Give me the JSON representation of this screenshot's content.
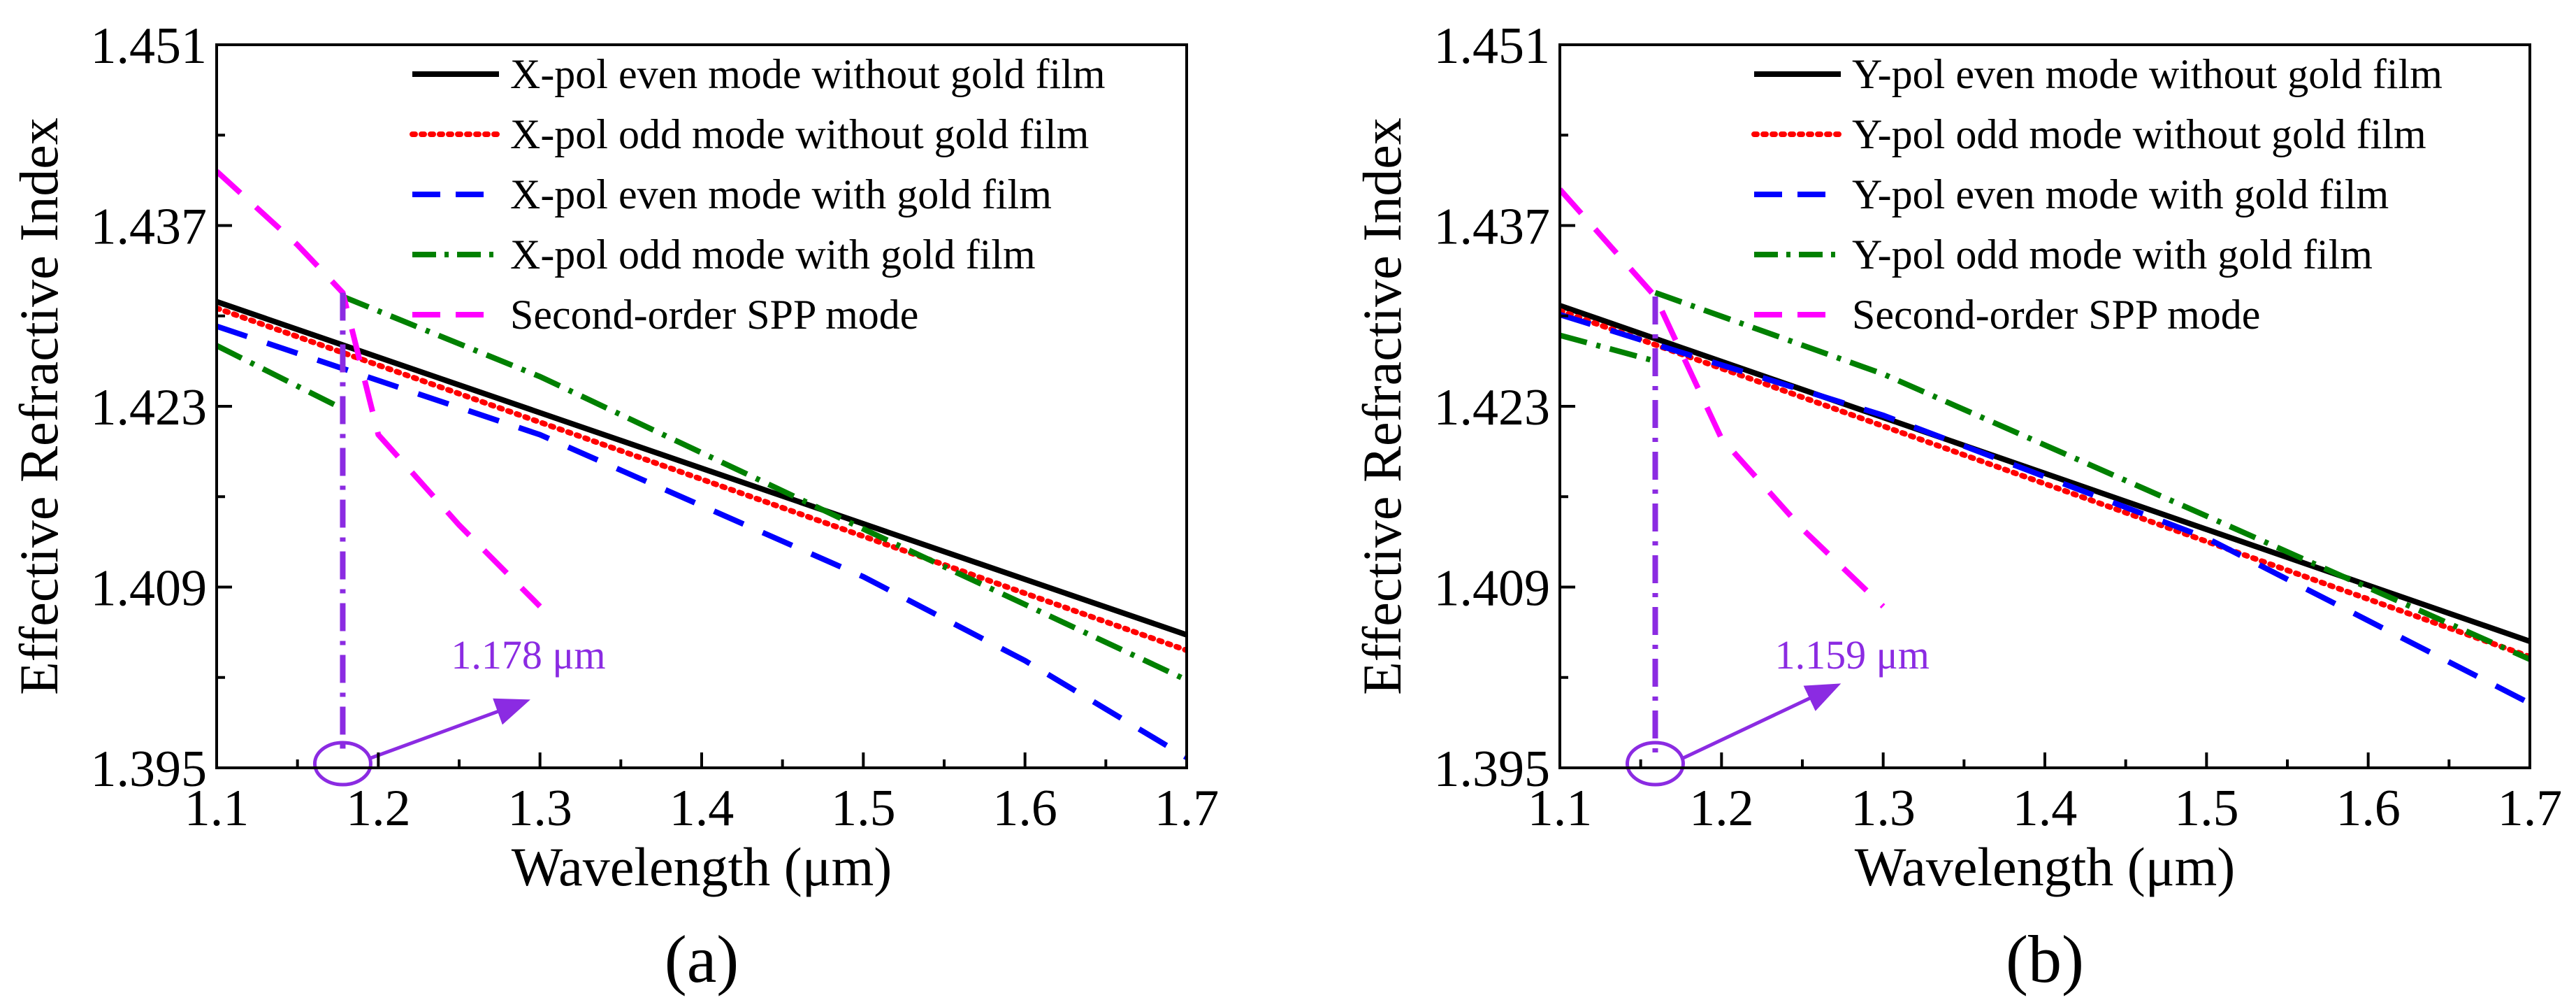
{
  "chart_data": [
    {
      "type": "line",
      "panel_label": "(a)",
      "xlabel": "Wavelength (μm)",
      "ylabel": "Effective Refractive Index",
      "xlim": [
        1.1,
        1.7
      ],
      "ylim": [
        1.395,
        1.451
      ],
      "xticks": [
        1.1,
        1.2,
        1.3,
        1.4,
        1.5,
        1.6,
        1.7
      ],
      "xtick_labels": [
        "1.1",
        "1.2",
        "1.3",
        "1.4",
        "1.5",
        "1.6",
        "1.7"
      ],
      "yticks": [
        1.395,
        1.409,
        1.423,
        1.437,
        1.451
      ],
      "ytick_labels": [
        "1.395",
        "1.409",
        "1.423",
        "1.437",
        "1.451"
      ],
      "legend_position": "top-right",
      "series": [
        {
          "name": "X-pol even mode without gold film",
          "color": "#000000",
          "style": "solid",
          "x": [
            1.1,
            1.7
          ],
          "y": [
            1.4311,
            1.4053
          ]
        },
        {
          "name": "X-pol  odd  mode without gold film",
          "color": "#ff0000",
          "style": "dotted",
          "x": [
            1.1,
            1.7
          ],
          "y": [
            1.4306,
            1.4041
          ]
        },
        {
          "name": "X-pol even mode with gold film",
          "color": "#0000ff",
          "style": "dashed",
          "x": [
            1.1,
            1.3,
            1.5,
            1.6,
            1.7
          ],
          "y": [
            1.4292,
            1.4208,
            1.4098,
            1.4033,
            1.3958
          ]
        },
        {
          "name": "X-pol  odd  mode with gold film",
          "color": "#008000",
          "style": "dashdot",
          "segments": [
            {
              "x": [
                1.1,
                1.178
              ],
              "y": [
                1.4277,
                1.4228
              ]
            },
            {
              "x": [
                1.178,
                1.3,
                1.5,
                1.7
              ],
              "y": [
                1.4315,
                1.4253,
                1.4135,
                1.4018
              ]
            }
          ]
        },
        {
          "name": "Second-order SPP mode",
          "color": "#ff00ff",
          "style": "dashed",
          "x": [
            1.1,
            1.15,
            1.178,
            1.2,
            1.25,
            1.3
          ],
          "y": [
            1.4412,
            1.4355,
            1.4318,
            1.4208,
            1.4138,
            1.4075
          ]
        }
      ],
      "marker_line": {
        "x": 1.178,
        "y_top": 1.4318,
        "color": "#8b2be2"
      },
      "annotation": {
        "text": "1.178 μm",
        "color": "#8b2be2",
        "x": 1.178,
        "arrow_to": [
          1.29,
          1.4001
        ],
        "label_at": [
          1.245,
          1.4027
        ]
      }
    },
    {
      "type": "line",
      "panel_label": "(b)",
      "xlabel": "Wavelength (μm)",
      "ylabel": "Effective Refractive Index",
      "xlim": [
        1.1,
        1.7
      ],
      "ylim": [
        1.395,
        1.451
      ],
      "xticks": [
        1.1,
        1.2,
        1.3,
        1.4,
        1.5,
        1.6,
        1.7
      ],
      "xtick_labels": [
        "1.1",
        "1.2",
        "1.3",
        "1.4",
        "1.5",
        "1.6",
        "1.7"
      ],
      "yticks": [
        1.395,
        1.409,
        1.423,
        1.437,
        1.451
      ],
      "ytick_labels": [
        "1.395",
        "1.409",
        "1.423",
        "1.437",
        "1.451"
      ],
      "legend_position": "top-right",
      "series": [
        {
          "name": "Y-pol even mode without gold film",
          "color": "#000000",
          "style": "solid",
          "x": [
            1.1,
            1.7
          ],
          "y": [
            1.4308,
            1.4048
          ]
        },
        {
          "name": "Y-pol  odd  mode without gold film",
          "color": "#ff0000",
          "style": "dotted",
          "x": [
            1.1,
            1.7
          ],
          "y": [
            1.4304,
            1.4036
          ]
        },
        {
          "name": "Y-pol even mode with gold film",
          "color": "#0000ff",
          "style": "dashed",
          "x": [
            1.1,
            1.3,
            1.5,
            1.7
          ],
          "y": [
            1.4301,
            1.4223,
            1.4128,
            1.4
          ]
        },
        {
          "name": "Y-pol  odd  mode with gold film",
          "color": "#008000",
          "style": "dashdot",
          "segments": [
            {
              "x": [
                1.1,
                1.159
              ],
              "y": [
                1.4285,
                1.4265
              ]
            },
            {
              "x": [
                1.159,
                1.3,
                1.5,
                1.7
              ],
              "y": [
                1.4318,
                1.4255,
                1.4145,
                1.4034
              ]
            }
          ]
        },
        {
          "name": "Second-order SPP mode",
          "color": "#ff00ff",
          "style": "dashed",
          "x": [
            1.1,
            1.159,
            1.2,
            1.25,
            1.3
          ],
          "y": [
            1.4398,
            1.4315,
            1.4205,
            1.4135,
            1.4075
          ]
        }
      ],
      "marker_line": {
        "x": 1.159,
        "y_top": 1.4315,
        "color": "#8b2be2"
      },
      "annotation": {
        "text": "1.159 μm",
        "color": "#8b2be2",
        "x": 1.159,
        "arrow_to": [
          1.27,
          1.4013
        ],
        "label_at": [
          1.233,
          1.4027
        ]
      }
    }
  ]
}
